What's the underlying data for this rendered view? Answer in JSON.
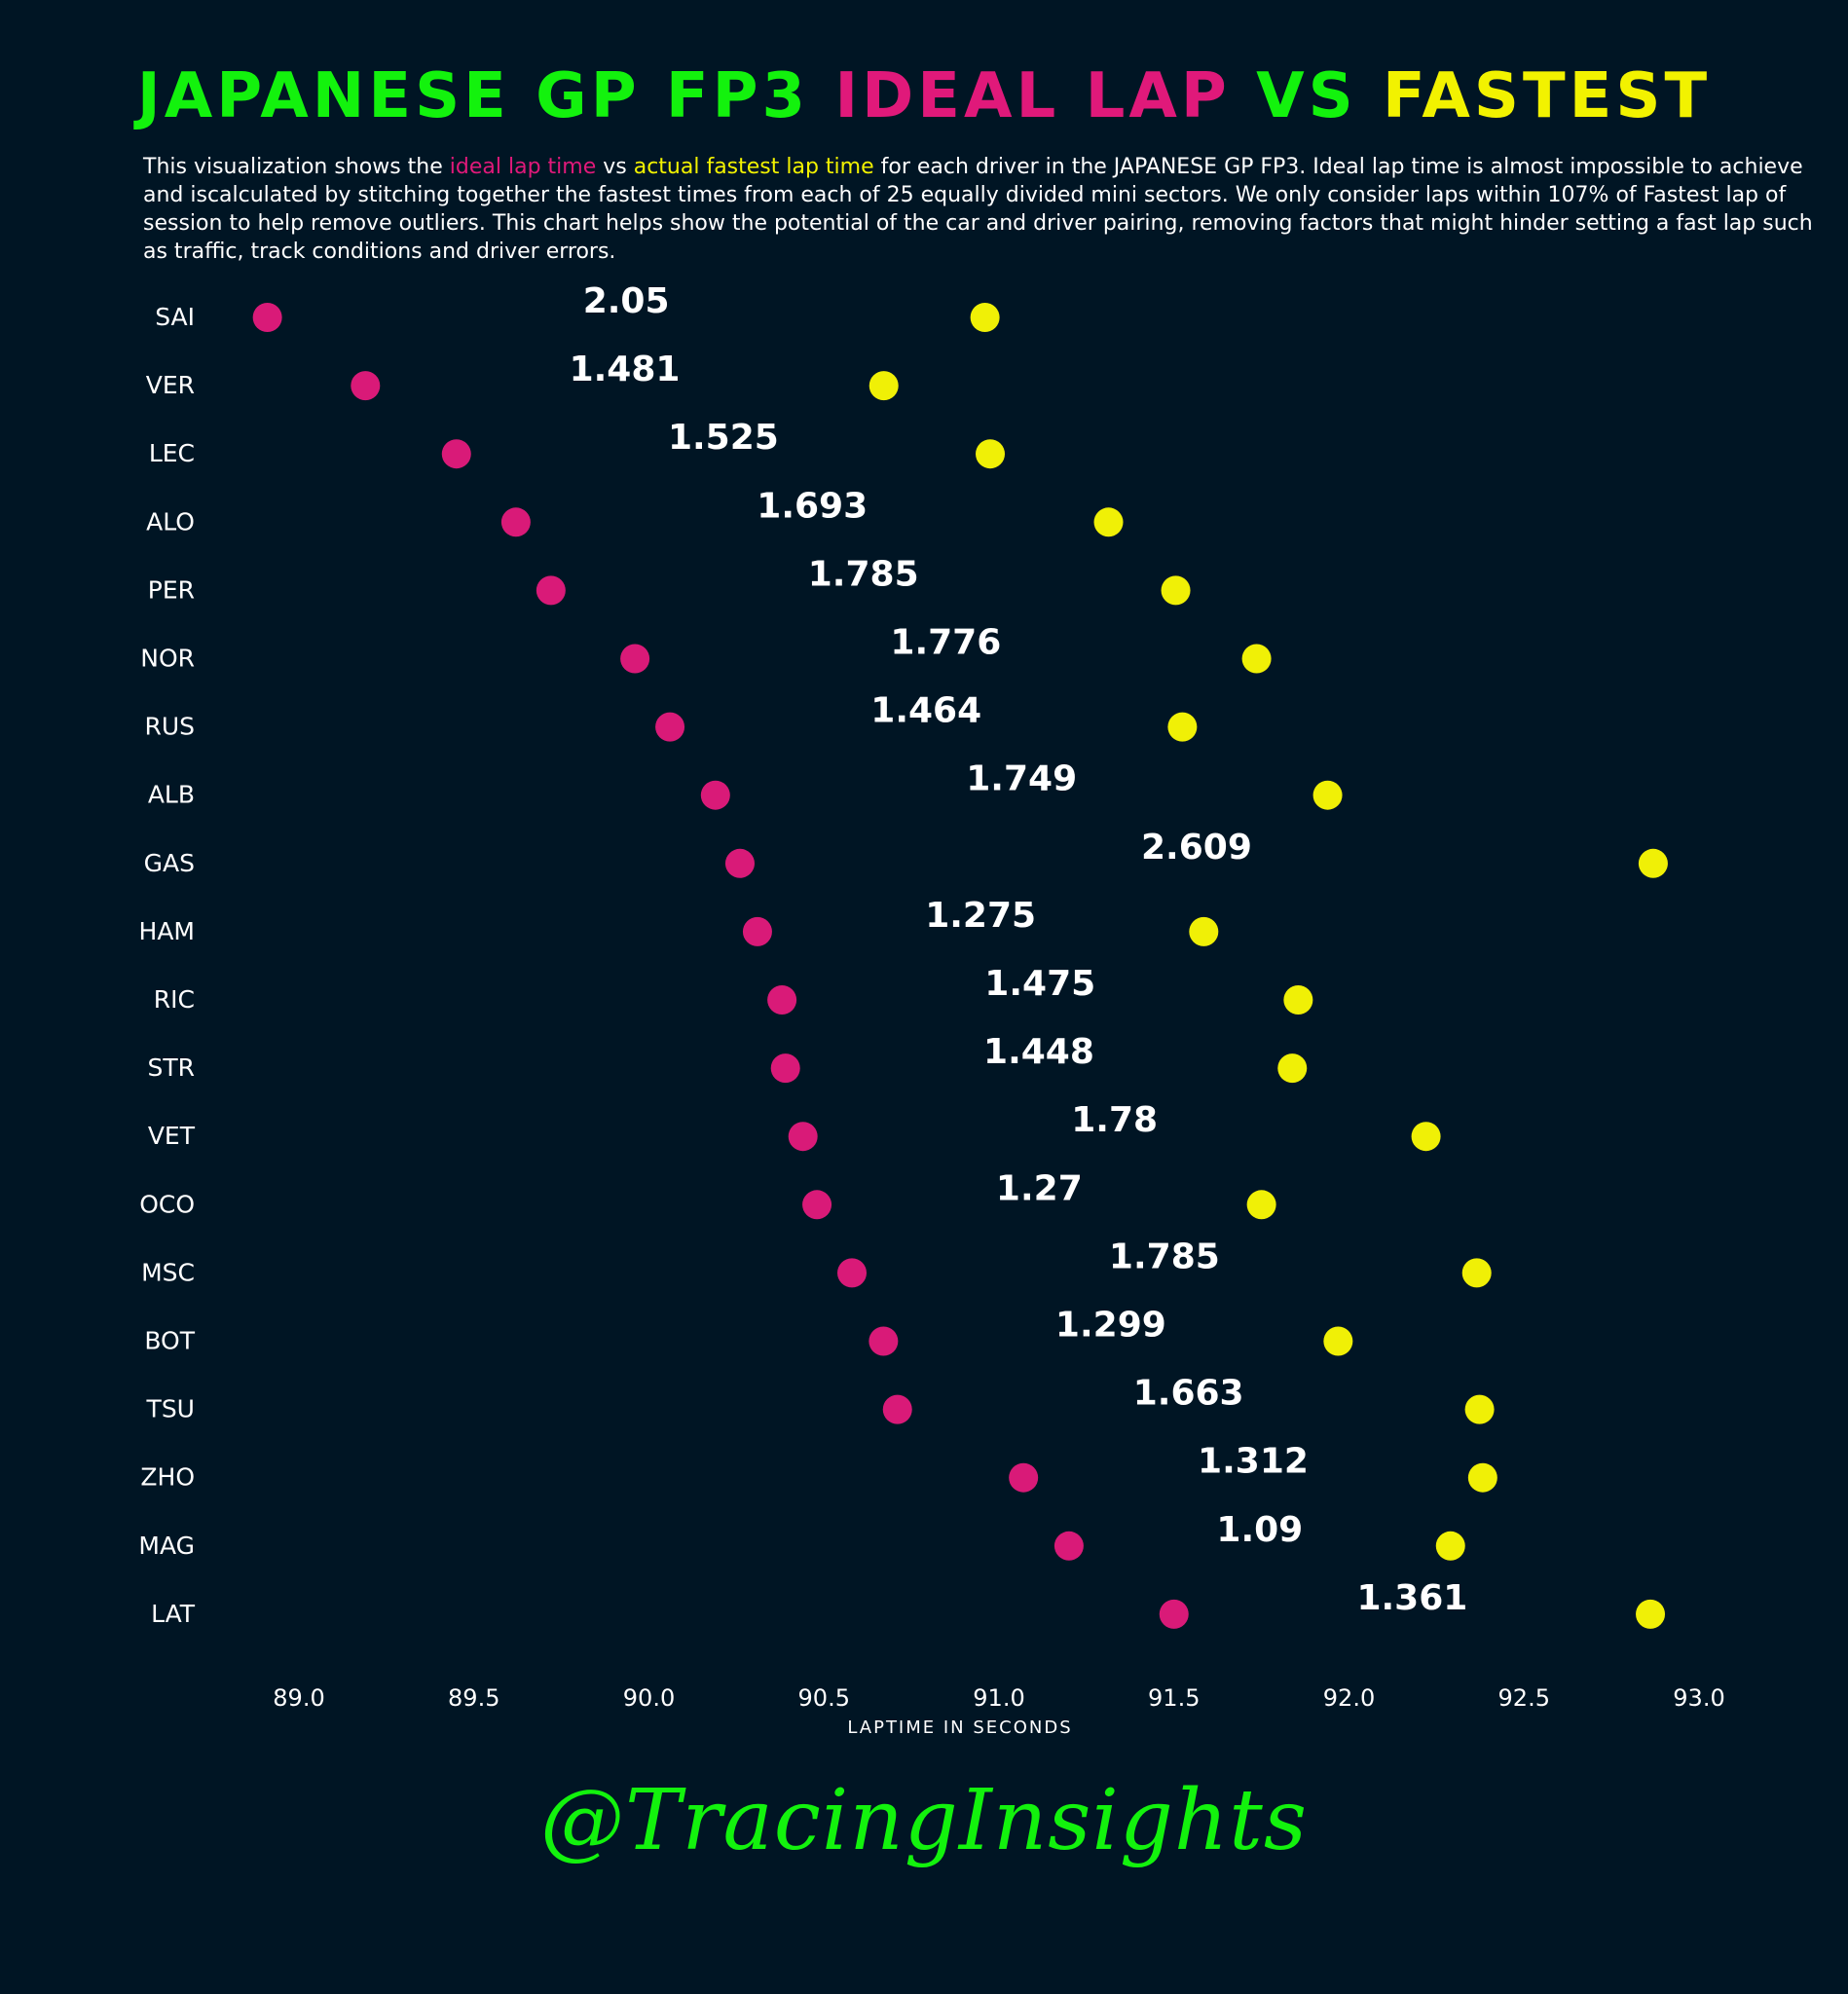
{
  "title": {
    "part1": "JAPANESE GP FP3 ",
    "part2": "IDEAL LAP",
    "part3": " VS ",
    "part4": "FASTEST"
  },
  "subtitle": {
    "p1": "This visualization shows the ",
    "ideal": "ideal lap time",
    "p2": " vs ",
    "actual": "actual fastest lap time",
    "p3": " for each driver in the JAPANESE GP FP3. Ideal lap time is almost impossible to achieve and iscalculated by stitching together the fastest times from each of 25 equally divided mini sectors. We only consider laps within 107% of Fastest lap of session to help remove outliers. This chart helps show the potential of the car and driver pairing, removing factors that might hinder setting a fast lap such as traffic, track conditions and driver errors."
  },
  "colors": {
    "background": "#001524",
    "green": "#13f20d",
    "magenta": "#e0197a",
    "yellow": "#f2f200",
    "ideal_dot": "#d91a78",
    "fastest_dot": "#f0f006",
    "text": "#ffffff"
  },
  "watermark": "@TracingInsights",
  "chart_data": {
    "type": "dumbbell",
    "xlabel": "LAPTIME IN SECONDS",
    "ylabel": "",
    "xlim": [
      88.92,
      93.08
    ],
    "xticks": [
      "89.0",
      "89.5",
      "90.0",
      "90.5",
      "91.0",
      "91.5",
      "92.0",
      "92.5",
      "93.0"
    ],
    "xtick_values": [
      89.0,
      89.5,
      90.0,
      90.5,
      91.0,
      91.5,
      92.0,
      92.5,
      93.0
    ],
    "grid": false,
    "series": [
      {
        "name": "Ideal lap time",
        "color": "#d91a78"
      },
      {
        "name": "Actual fastest lap time",
        "color": "#f0f006"
      }
    ],
    "drivers": [
      {
        "driver": "SAI",
        "ideal": 88.91,
        "fastest": 90.96,
        "diff": "2.05"
      },
      {
        "driver": "VER",
        "ideal": 89.19,
        "fastest": 90.671,
        "diff": "1.481"
      },
      {
        "driver": "LEC",
        "ideal": 89.45,
        "fastest": 90.975,
        "diff": "1.525"
      },
      {
        "driver": "ALO",
        "ideal": 89.62,
        "fastest": 91.313,
        "diff": "1.693"
      },
      {
        "driver": "PER",
        "ideal": 89.72,
        "fastest": 91.505,
        "diff": "1.785"
      },
      {
        "driver": "NOR",
        "ideal": 89.96,
        "fastest": 91.736,
        "diff": "1.776"
      },
      {
        "driver": "RUS",
        "ideal": 90.06,
        "fastest": 91.524,
        "diff": "1.464"
      },
      {
        "driver": "ALB",
        "ideal": 90.19,
        "fastest": 91.939,
        "diff": "1.749"
      },
      {
        "driver": "GAS",
        "ideal": 90.26,
        "fastest": 92.869,
        "diff": "2.609"
      },
      {
        "driver": "HAM",
        "ideal": 90.31,
        "fastest": 91.585,
        "diff": "1.275"
      },
      {
        "driver": "RIC",
        "ideal": 90.38,
        "fastest": 91.855,
        "diff": "1.475"
      },
      {
        "driver": "STR",
        "ideal": 90.39,
        "fastest": 91.838,
        "diff": "1.448"
      },
      {
        "driver": "VET",
        "ideal": 90.44,
        "fastest": 92.22,
        "diff": "1.78"
      },
      {
        "driver": "OCO",
        "ideal": 90.48,
        "fastest": 91.75,
        "diff": "1.27"
      },
      {
        "driver": "MSC",
        "ideal": 90.58,
        "fastest": 92.365,
        "diff": "1.785"
      },
      {
        "driver": "BOT",
        "ideal": 90.67,
        "fastest": 91.969,
        "diff": "1.299"
      },
      {
        "driver": "TSU",
        "ideal": 90.71,
        "fastest": 92.373,
        "diff": "1.663"
      },
      {
        "driver": "ZHO",
        "ideal": 91.07,
        "fastest": 92.382,
        "diff": "1.312"
      },
      {
        "driver": "MAG",
        "ideal": 91.2,
        "fastest": 92.29,
        "diff": "1.09"
      },
      {
        "driver": "LAT",
        "ideal": 91.5,
        "fastest": 92.861,
        "diff": "1.361"
      }
    ]
  }
}
